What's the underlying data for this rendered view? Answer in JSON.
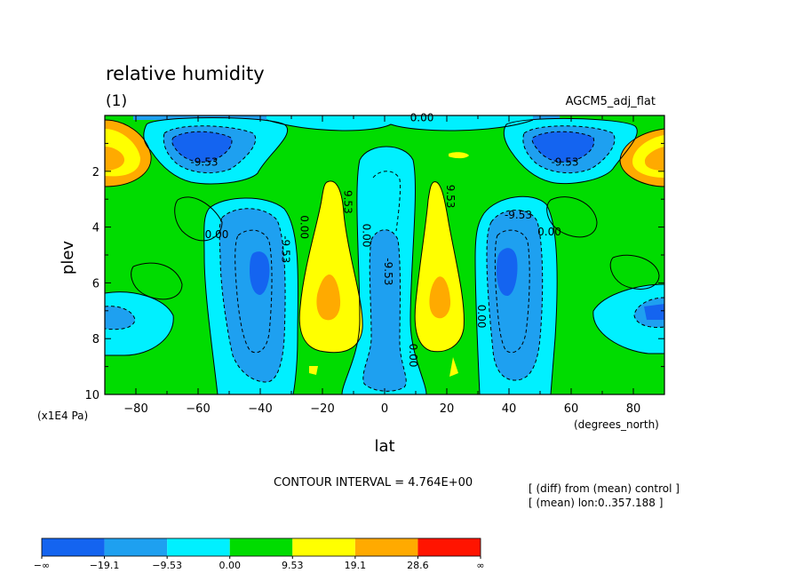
{
  "chart_data": {
    "type": "heatmap",
    "title": "relative humidity",
    "panel_label": "(1)",
    "dataset_label": "AGCM5_adj_flat",
    "xlabel": "lat",
    "ylabel": "plev",
    "x_unit": "(degrees_north)",
    "y_unit": "(x1E4 Pa)",
    "xlim": [
      -90,
      90
    ],
    "ylim": [
      10,
      0
    ],
    "x_ticks": [
      -80,
      -60,
      -40,
      -20,
      0,
      20,
      40,
      60,
      80
    ],
    "x_tick_labels": [
      "−80",
      "−60",
      "−40",
      "−20",
      "0",
      "20",
      "40",
      "60",
      "80"
    ],
    "y_ticks": [
      2,
      4,
      6,
      8,
      10
    ],
    "y_tick_labels": [
      "2",
      "4",
      "6",
      "8",
      "10"
    ],
    "contour_interval_text": "CONTOUR INTERVAL = 4.764E+00",
    "notes": [
      "[ (diff) from (mean) control ]",
      "[ (mean) lon:0..357.188 ]"
    ],
    "contour_labels": [
      {
        "text": "0.00",
        "x": 12,
        "y": 0.2
      },
      {
        "text": "-9.53",
        "x": -58,
        "y": 1.8
      },
      {
        "text": "-9.53",
        "x": 58,
        "y": 1.8
      },
      {
        "text": "9.53",
        "x": -13,
        "y": 3.1
      },
      {
        "text": "9.53",
        "x": 20,
        "y": 2.9
      },
      {
        "text": "-9.53",
        "x": 43,
        "y": 3.7
      },
      {
        "text": "0.00",
        "x": -54,
        "y": 4.4
      },
      {
        "text": "0.00",
        "x": -27,
        "y": 4.0
      },
      {
        "text": "-9.53",
        "x": -33,
        "y": 4.8
      },
      {
        "text": "0.00",
        "x": -7,
        "y": 4.3
      },
      {
        "text": "0.00",
        "x": 53,
        "y": 4.3
      },
      {
        "text": "-9.53",
        "x": 0,
        "y": 5.6
      },
      {
        "text": "0.00",
        "x": 30,
        "y": 7.2
      },
      {
        "text": "0.00",
        "x": 8,
        "y": 8.6
      }
    ],
    "colorbar": {
      "colors": [
        "#1464f0",
        "#1ea0f0",
        "#00f0ff",
        "#00dc00",
        "#ffff00",
        "#ffaa00",
        "#ff1400"
      ],
      "labels": [
        "−∞",
        "−19.1",
        "−9.53",
        "0.00",
        "9.53",
        "19.1",
        "28.6",
        "∞"
      ]
    }
  }
}
